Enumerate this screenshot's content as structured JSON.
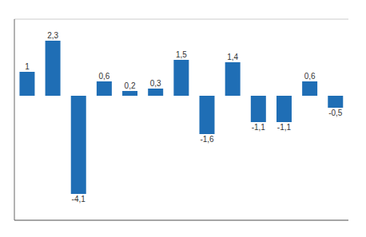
{
  "chart_data": {
    "type": "bar",
    "categories": [
      null,
      null,
      null,
      null,
      null,
      null,
      null,
      null,
      null,
      null,
      null,
      null,
      null
    ],
    "values": [
      1.0,
      2.3,
      -4.1,
      0.6,
      0.2,
      0.3,
      1.5,
      -1.6,
      1.4,
      -1.1,
      -1.1,
      0.6,
      -0.5
    ],
    "value_labels": [
      "1",
      "2,3",
      "-4,1",
      "0,6",
      "0,2",
      "0,3",
      "1,5",
      "-1,6",
      "1,4",
      "-1,1",
      "-1,1",
      "0,6",
      "-0,5"
    ],
    "data_labels": true,
    "color": "#1f6eb5",
    "ylim": [
      -5.2,
      3.2
    ],
    "yticks": [
      -5.0,
      -4.0,
      -3.0,
      -2.0,
      -1.0,
      0.0,
      1.0,
      2.0,
      3.0
    ],
    "grid": true,
    "tick_labels": false
  }
}
